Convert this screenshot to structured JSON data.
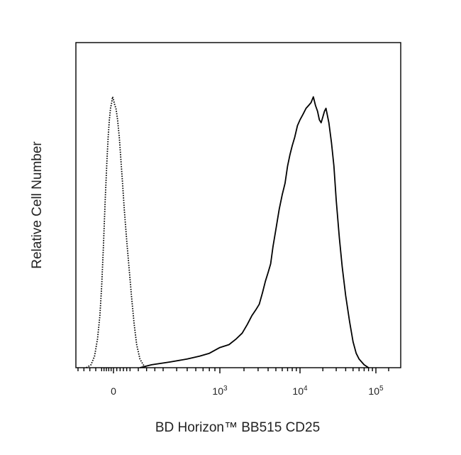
{
  "chart_data": {
    "type": "line",
    "title": "",
    "xlabel": "BD Horizon™ BB515 CD25",
    "ylabel": "Relative Cell Number",
    "x_scale": "biexponential",
    "xlim": [
      -300,
      160000
    ],
    "ylim": [
      0,
      100
    ],
    "grid": false,
    "legend": "none",
    "x_tick_labels": [
      {
        "value": 0,
        "base": "0",
        "exp": ""
      },
      {
        "value": 1000,
        "base": "10",
        "exp": "3"
      },
      {
        "value": 10000,
        "base": "10",
        "exp": "4"
      },
      {
        "value": 100000,
        "base": "10",
        "exp": "5"
      }
    ],
    "series": [
      {
        "style": "dotted",
        "color": "#000000",
        "points": [
          [
            -230,
            0
          ],
          [
            -190,
            1
          ],
          [
            -160,
            4
          ],
          [
            -135,
            10
          ],
          [
            -115,
            18
          ],
          [
            -100,
            28
          ],
          [
            -85,
            42
          ],
          [
            -70,
            58
          ],
          [
            -55,
            72
          ],
          [
            -45,
            80
          ],
          [
            -35,
            86
          ],
          [
            -25,
            90
          ],
          [
            -15,
            92
          ],
          [
            -8,
            94
          ],
          [
            0,
            93
          ],
          [
            8,
            91
          ],
          [
            15,
            90
          ],
          [
            25,
            86
          ],
          [
            35,
            80
          ],
          [
            45,
            72
          ],
          [
            55,
            64
          ],
          [
            65,
            55
          ],
          [
            80,
            44
          ],
          [
            95,
            34
          ],
          [
            110,
            24
          ],
          [
            125,
            15
          ],
          [
            140,
            8
          ],
          [
            160,
            3
          ],
          [
            180,
            1
          ],
          [
            200,
            0
          ]
        ]
      },
      {
        "style": "solid",
        "color": "#000000",
        "points": [
          [
            160,
            0
          ],
          [
            230,
            1
          ],
          [
            350,
            2
          ],
          [
            500,
            3
          ],
          [
            650,
            4
          ],
          [
            800,
            5
          ],
          [
            1000,
            7
          ],
          [
            1300,
            8
          ],
          [
            1600,
            10
          ],
          [
            1900,
            12
          ],
          [
            2200,
            15
          ],
          [
            2500,
            18
          ],
          [
            2800,
            20
          ],
          [
            3100,
            22
          ],
          [
            3400,
            26
          ],
          [
            3700,
            30
          ],
          [
            4000,
            33
          ],
          [
            4300,
            36
          ],
          [
            4600,
            42
          ],
          [
            5000,
            48
          ],
          [
            5500,
            55
          ],
          [
            6000,
            60
          ],
          [
            6500,
            64
          ],
          [
            7000,
            70
          ],
          [
            7500,
            74
          ],
          [
            8000,
            77
          ],
          [
            8600,
            80
          ],
          [
            9300,
            84
          ],
          [
            10000,
            86
          ],
          [
            11000,
            88
          ],
          [
            12000,
            90
          ],
          [
            13000,
            91
          ],
          [
            14000,
            92
          ],
          [
            15000,
            94
          ],
          [
            16000,
            91
          ],
          [
            17000,
            89
          ],
          [
            18000,
            86
          ],
          [
            19000,
            85
          ],
          [
            20000,
            87
          ],
          [
            21000,
            89
          ],
          [
            22000,
            90
          ],
          [
            24000,
            85
          ],
          [
            26000,
            78
          ],
          [
            28000,
            70
          ],
          [
            30000,
            58
          ],
          [
            33000,
            45
          ],
          [
            36000,
            35
          ],
          [
            40000,
            25
          ],
          [
            45000,
            16
          ],
          [
            50000,
            9
          ],
          [
            55000,
            5
          ],
          [
            60000,
            3
          ],
          [
            70000,
            1
          ],
          [
            80000,
            0
          ]
        ]
      }
    ]
  }
}
